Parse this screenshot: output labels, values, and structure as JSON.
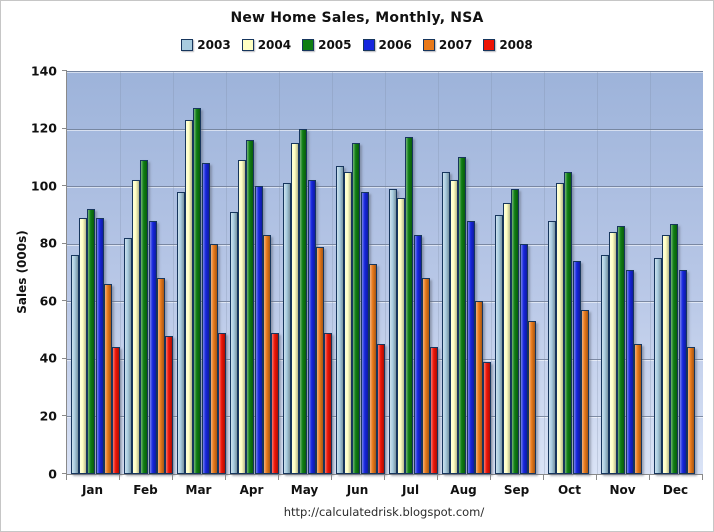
{
  "footer": {
    "url": "http://calculatedrisk.blogspot.com/"
  },
  "colors": {
    "bar_outline": "#17365D",
    "plot_bg_top": "#9DB3DA",
    "plot_bg_bottom": "#DAE3F6",
    "gridline": "#707E96",
    "axis": "#8A8A8A",
    "chart_border": "#C6C6C6",
    "text": "#111111"
  },
  "chart_data": {
    "type": "bar",
    "title": "New Home Sales, Monthly, NSA",
    "xlabel": "",
    "ylabel": "Sales (000s)",
    "ylim": [
      0,
      140
    ],
    "ytick_step": 20,
    "grid": true,
    "legend_position": "top",
    "categories": [
      "Jan",
      "Feb",
      "Mar",
      "Apr",
      "May",
      "Jun",
      "Jul",
      "Aug",
      "Sep",
      "Oct",
      "Nov",
      "Dec"
    ],
    "series": [
      {
        "name": "2003",
        "color": "#A8CCDF",
        "values": [
          76,
          82,
          98,
          91,
          101,
          107,
          99,
          105,
          90,
          88,
          76,
          75
        ]
      },
      {
        "name": "2004",
        "color": "#FFFFC2",
        "values": [
          89,
          102,
          123,
          109,
          115,
          105,
          96,
          102,
          94,
          101,
          84,
          83
        ]
      },
      {
        "name": "2005",
        "color": "#0E7E12",
        "values": [
          92,
          109,
          127,
          116,
          120,
          115,
          117,
          110,
          99,
          105,
          86,
          87
        ]
      },
      {
        "name": "2006",
        "color": "#1526DE",
        "values": [
          89,
          88,
          108,
          100,
          102,
          98,
          83,
          88,
          80,
          74,
          71,
          71
        ]
      },
      {
        "name": "2007",
        "color": "#E8791A",
        "values": [
          66,
          68,
          80,
          83,
          79,
          73,
          68,
          60,
          53,
          57,
          45,
          44
        ]
      },
      {
        "name": "2008",
        "color": "#ED1406",
        "values": [
          44,
          48,
          49,
          49,
          49,
          45,
          44,
          39,
          null,
          null,
          null,
          null
        ]
      }
    ]
  }
}
